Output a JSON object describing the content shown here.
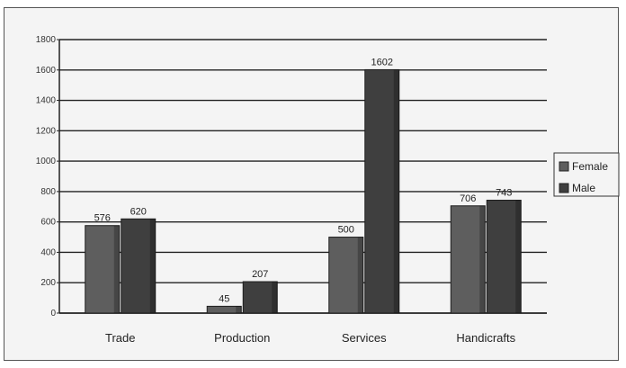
{
  "chart_data": {
    "type": "bar",
    "title": "",
    "xlabel": "",
    "ylabel": "",
    "categories": [
      "Trade",
      "Production",
      "Services",
      "Handicrafts"
    ],
    "series": [
      {
        "name": "Female",
        "values": [
          576,
          45,
          500,
          706
        ]
      },
      {
        "name": "Male",
        "values": [
          620,
          207,
          1602,
          743
        ]
      }
    ],
    "data_labels": [
      [
        "576",
        "45",
        "500",
        "706"
      ],
      [
        "620",
        "207",
        "1602",
        "743"
      ]
    ],
    "ylim": [
      0,
      1800
    ],
    "yticks": [
      0,
      200,
      400,
      600,
      800,
      1000,
      1200,
      1400,
      1600,
      1800
    ],
    "ytick_labels": [
      "0",
      "200",
      "400",
      "600",
      "800",
      "1000",
      "1200",
      "1400",
      "1600",
      "1800"
    ],
    "grid": true,
    "legend_position": "right",
    "colors": {
      "Female": "#5e5e5e",
      "Male": "#3f3f3f",
      "grid": "#222222",
      "background": "#f4f4f4"
    }
  }
}
